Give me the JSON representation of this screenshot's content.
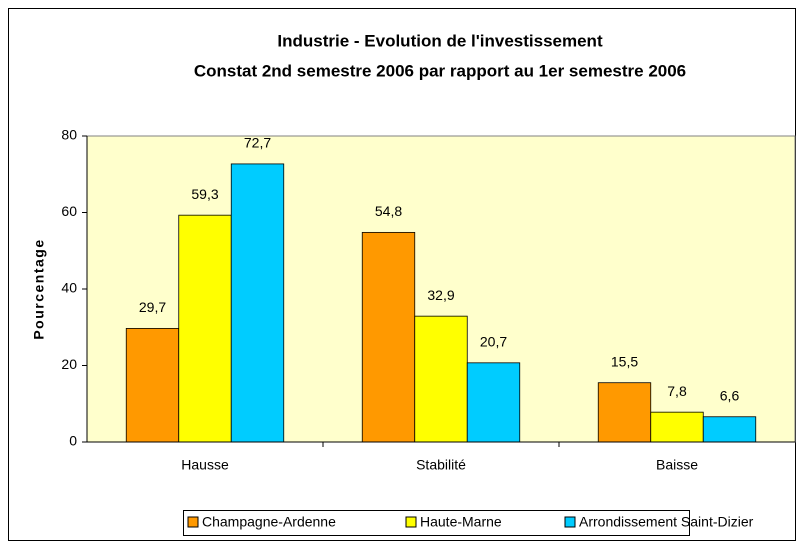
{
  "chart_data": {
    "type": "bar",
    "title": "Industrie - Evolution de l'investissement",
    "subtitle": "Constat 2nd semestre 2006 par rapport au 1er semestre 2006",
    "y_label": "Pourcentage",
    "categories": [
      "Hausse",
      "Stabilité",
      "Baisse"
    ],
    "series": [
      {
        "name": "Champagne-Ardenne",
        "color": "#FF9900",
        "values": [
          29.7,
          54.8,
          15.5
        ],
        "value_labels": [
          "29,7",
          "54,8",
          "15,5"
        ]
      },
      {
        "name": "Haute-Marne",
        "color": "#FFFF00",
        "values": [
          59.3,
          32.9,
          7.8
        ],
        "value_labels": [
          "59,3",
          "32,9",
          "7,8"
        ]
      },
      {
        "name": "Arrondissement Saint-Dizier",
        "color": "#00CCFF",
        "values": [
          72.7,
          20.7,
          6.6
        ],
        "value_labels": [
          "72,7",
          "20,7",
          "6,6"
        ]
      }
    ],
    "ylim": [
      0,
      80
    ],
    "yticks": [
      0,
      20,
      40,
      60,
      80
    ],
    "plot_background": "#FFFFCC",
    "legend": "bottom"
  }
}
